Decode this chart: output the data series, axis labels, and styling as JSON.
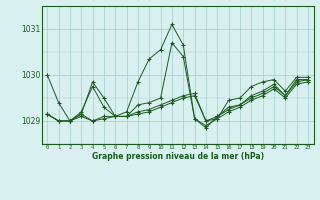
{
  "xlabel": "Graphe pression niveau de la mer (hPa)",
  "hours": [
    0,
    1,
    2,
    3,
    4,
    5,
    6,
    7,
    8,
    9,
    10,
    11,
    12,
    13,
    14,
    15,
    16,
    17,
    18,
    19,
    20,
    21,
    22,
    23
  ],
  "series": [
    [
      1030.0,
      1029.4,
      1029.0,
      1029.15,
      1029.85,
      1029.5,
      1029.1,
      1029.2,
      1029.85,
      1030.35,
      1030.55,
      1031.1,
      1030.65,
      1029.05,
      1028.9,
      1029.05,
      1029.45,
      1029.5,
      1029.75,
      1029.85,
      1029.9,
      1029.65,
      1029.95,
      1029.95
    ],
    [
      1029.15,
      1029.0,
      1029.0,
      1029.2,
      1029.75,
      1029.3,
      1029.1,
      1029.1,
      1029.35,
      1029.4,
      1029.5,
      1030.7,
      1030.4,
      1029.05,
      1028.85,
      1029.1,
      1029.3,
      1029.35,
      1029.55,
      1029.65,
      1029.8,
      1029.55,
      1029.9,
      1029.9
    ],
    [
      1029.15,
      1029.0,
      1029.0,
      1029.15,
      1029.0,
      1029.1,
      1029.1,
      1029.1,
      1029.2,
      1029.25,
      1029.35,
      1029.45,
      1029.55,
      1029.6,
      1029.0,
      1029.1,
      1029.25,
      1029.35,
      1029.5,
      1029.6,
      1029.75,
      1029.55,
      1029.85,
      1029.9
    ],
    [
      1029.15,
      1029.0,
      1029.0,
      1029.1,
      1029.0,
      1029.05,
      1029.1,
      1029.1,
      1029.15,
      1029.2,
      1029.3,
      1029.4,
      1029.5,
      1029.55,
      1029.0,
      1029.05,
      1029.2,
      1029.3,
      1029.45,
      1029.55,
      1029.7,
      1029.5,
      1029.8,
      1029.85
    ]
  ],
  "line_color": "#1a5c1a",
  "bg_color": "#d8f0f0",
  "grid_color": "#9ecece",
  "text_color": "#1a5c1a",
  "ylim": [
    1028.5,
    1031.5
  ],
  "yticks": [
    1029,
    1030,
    1031
  ],
  "marker": "+"
}
